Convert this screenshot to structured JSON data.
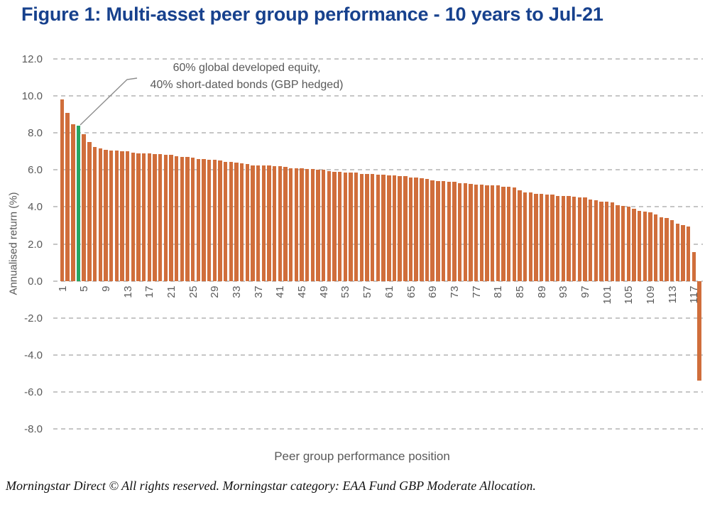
{
  "figure": {
    "title": "Figure 1: Multi-asset peer group performance - 10 years to Jul-21",
    "title_color": "#17418D",
    "source_note": "Morningstar Direct © All rights reserved. Morningstar category: EAA Fund GBP Moderate Allocation."
  },
  "chart_data": {
    "type": "bar",
    "title": "Figure 1: Multi-asset peer group performance - 10 years to Jul-21",
    "xlabel": "Peer group performance position",
    "ylabel": "Annualised return (%)",
    "ylim": [
      -8,
      12
    ],
    "grid": "horizontal dashed",
    "legend": "none",
    "bar_color": "#D06E3B",
    "highlight_color": "#27A662",
    "highlight_position": 4,
    "annotation": {
      "line1": "60% global developed equity,",
      "line2": "40% short-dated bonds (GBP hedged)",
      "points_to": "bar 4 (green)"
    },
    "ytick_labels": [
      "12.0",
      "10.0",
      "8.0",
      "6.0",
      "4.0",
      "2.0",
      "0.0",
      "-2.0",
      "-4.0",
      "-6.0",
      "-8.0"
    ],
    "xtick_labels": [
      "1",
      "5",
      "9",
      "13",
      "17",
      "21",
      "25",
      "29",
      "33",
      "37",
      "41",
      "45",
      "49",
      "53",
      "57",
      "61",
      "65",
      "69",
      "73",
      "77",
      "81",
      "85",
      "89",
      "93",
      "97",
      "101",
      "105",
      "109",
      "113",
      "117"
    ],
    "values": [
      9.8,
      9.1,
      8.45,
      8.4,
      7.95,
      7.5,
      7.25,
      7.15,
      7.1,
      7.05,
      7.05,
      7.0,
      7.0,
      6.95,
      6.9,
      6.9,
      6.9,
      6.85,
      6.85,
      6.8,
      6.8,
      6.75,
      6.7,
      6.7,
      6.65,
      6.6,
      6.6,
      6.55,
      6.55,
      6.5,
      6.45,
      6.45,
      6.4,
      6.35,
      6.3,
      6.25,
      6.25,
      6.25,
      6.25,
      6.2,
      6.2,
      6.15,
      6.1,
      6.1,
      6.1,
      6.05,
      6.05,
      6.0,
      6.0,
      5.95,
      5.9,
      5.9,
      5.85,
      5.85,
      5.85,
      5.8,
      5.8,
      5.8,
      5.75,
      5.75,
      5.7,
      5.7,
      5.65,
      5.65,
      5.6,
      5.6,
      5.55,
      5.5,
      5.45,
      5.4,
      5.4,
      5.35,
      5.35,
      5.3,
      5.3,
      5.25,
      5.2,
      5.2,
      5.15,
      5.15,
      5.15,
      5.1,
      5.1,
      5.05,
      4.9,
      4.8,
      4.8,
      4.7,
      4.7,
      4.65,
      4.65,
      4.6,
      4.6,
      4.6,
      4.55,
      4.5,
      4.5,
      4.4,
      4.35,
      4.3,
      4.3,
      4.25,
      4.1,
      4.05,
      4.0,
      3.9,
      3.8,
      3.75,
      3.7,
      3.6,
      3.45,
      3.4,
      3.3,
      3.1,
      3.0,
      2.95,
      1.55,
      -5.4
    ]
  }
}
